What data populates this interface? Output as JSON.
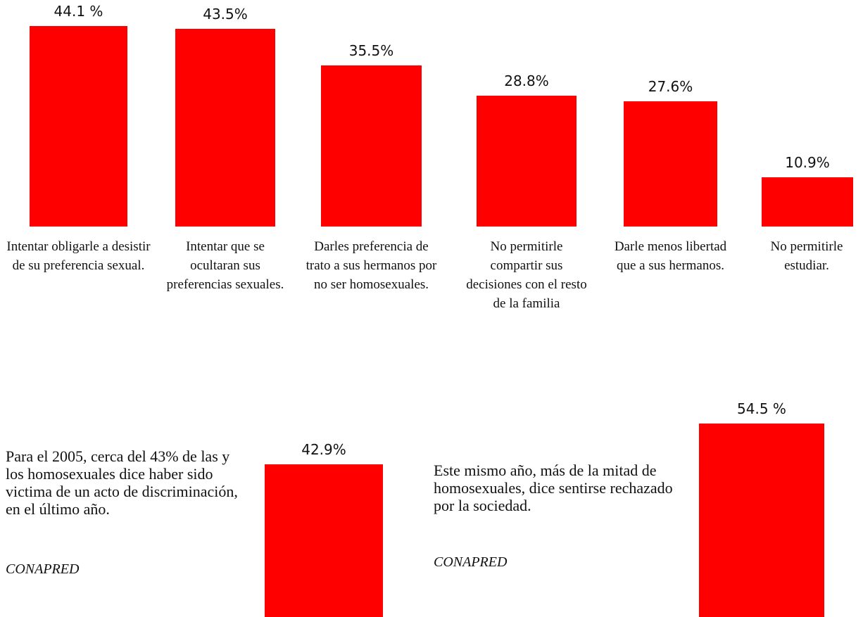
{
  "chart_data": [
    {
      "type": "bar",
      "categories": [
        "Intentar obligarle a desistir de su preferencia sexual.",
        "Intentar que se ocultaran sus preferencias sexuales.",
        "Darles preferencia de trato a sus hermanos por no ser homosexuales.",
        "No permitirle compartir sus decisiones con el resto de la familia",
        "Darle menos libertad que a sus hermanos.",
        "No permitirle estudiar."
      ],
      "values": [
        44.1,
        43.5,
        35.5,
        28.8,
        27.6,
        10.9
      ],
      "value_labels": [
        "44.1 %",
        "43.5%",
        "35.5%",
        "28.8%",
        "27.6%",
        "10.9%"
      ],
      "color": "#ff0000"
    },
    {
      "type": "bar",
      "annotation": "Para el 2005, cerca del 43% de las y los homosexuales dice haber sido victima de un acto de discriminación, en el último año.",
      "source": "CONAPRED",
      "values": [
        42.9
      ],
      "value_labels": [
        "42.9%"
      ],
      "color": "#ff0000"
    },
    {
      "type": "bar",
      "annotation": "Este mismo año, más de la mitad de homosexuales, dice sentirse rechazado por la sociedad.",
      "source": "CONAPRED",
      "values": [
        54.5
      ],
      "value_labels": [
        "54.5 %"
      ],
      "color": "#ff0000"
    }
  ]
}
